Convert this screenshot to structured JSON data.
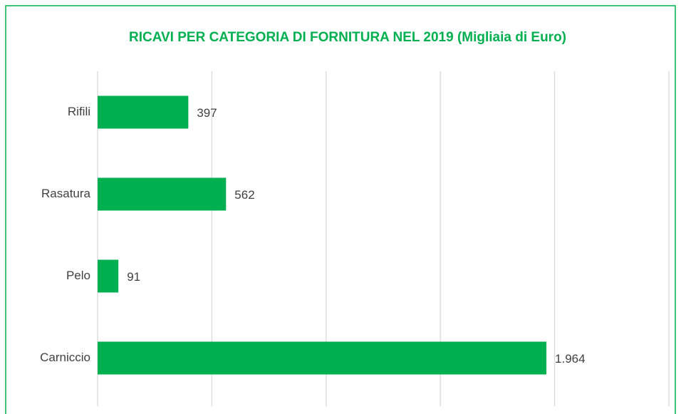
{
  "chart_data": {
    "type": "bar",
    "orientation": "horizontal",
    "title": "RICAVI PER CATEGORIA DI FORNITURA NEL 2019 (Migliaia di Euro)",
    "categories": [
      "Rifili",
      "Rasatura",
      "Pelo",
      "Carniccio"
    ],
    "values": [
      397,
      562,
      91,
      1964
    ],
    "value_labels": [
      "397",
      "562",
      "91",
      "1.964"
    ],
    "color": "#00b050",
    "xlim": [
      0,
      2500
    ],
    "xticks": [
      0,
      500,
      1000,
      1500,
      2000,
      2500
    ],
    "grid": true
  }
}
